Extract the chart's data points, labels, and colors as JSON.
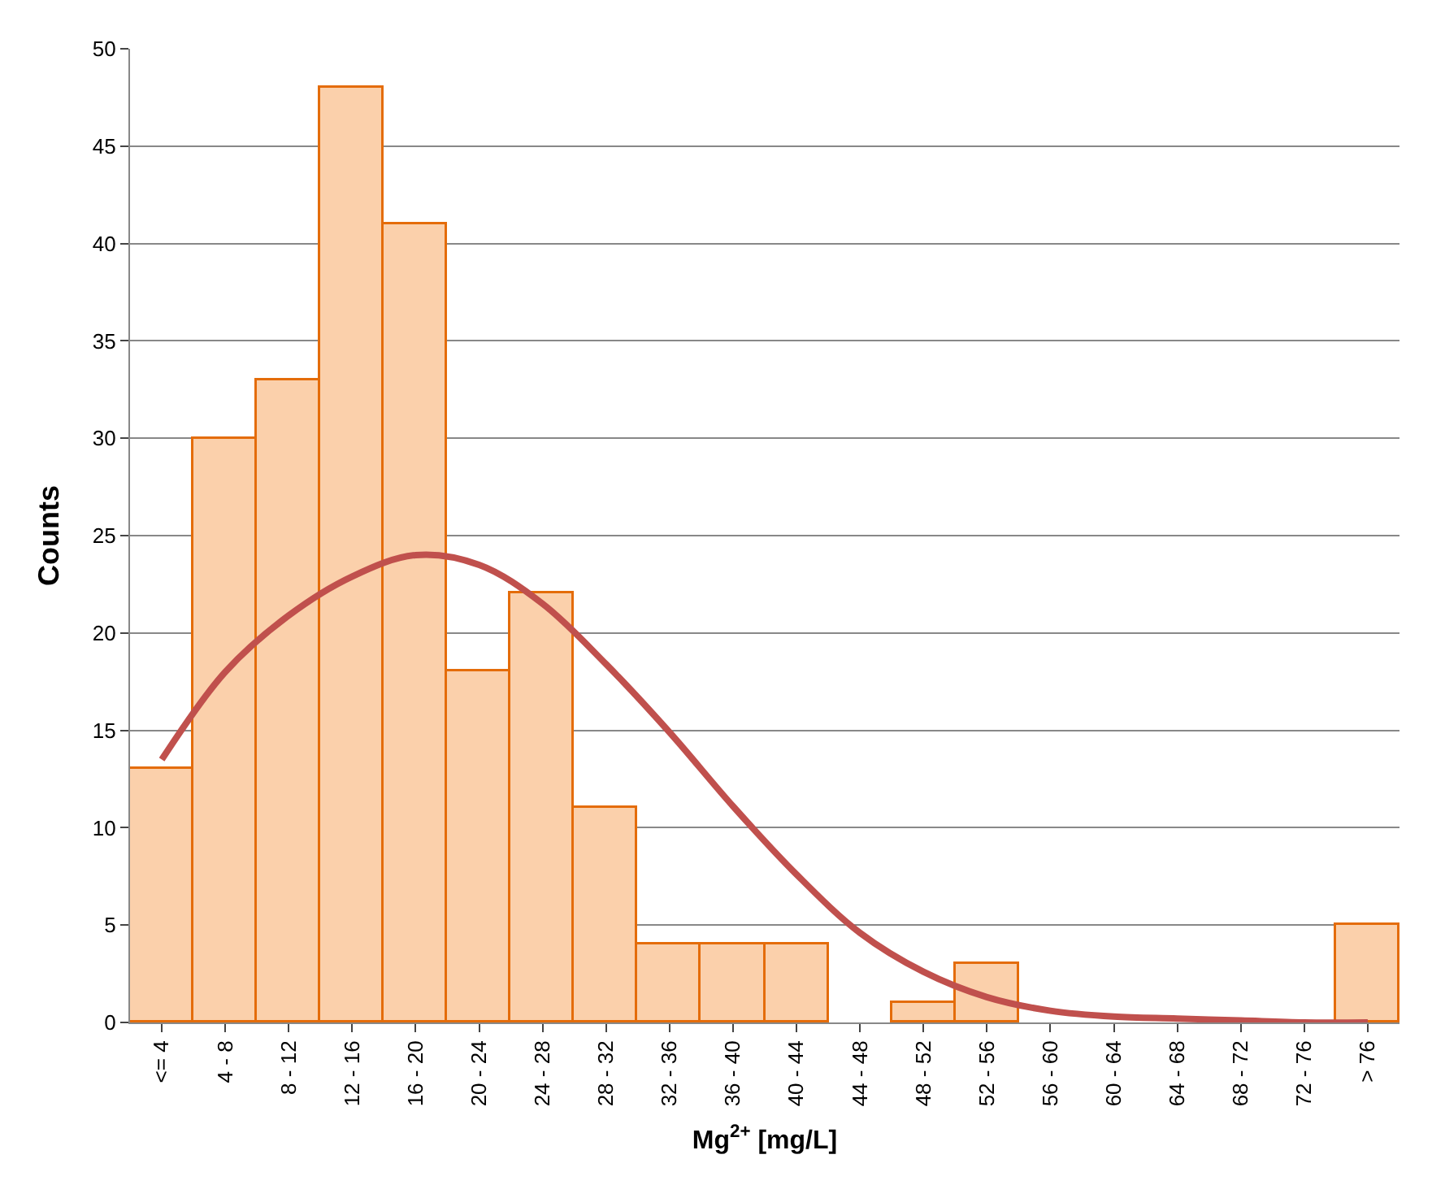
{
  "chart_data": {
    "type": "bar",
    "xlabel": "Mg$^{2+}$ [mg/L]",
    "ylabel": "Counts",
    "categories": [
      "<= 4",
      "4 - 8",
      "8 - 12",
      "12 - 16",
      "16 - 20",
      "20 - 24",
      "24 - 28",
      "28 - 32",
      "32 - 36",
      "36 - 40",
      "40 - 44",
      "44 - 48",
      "48 - 52",
      "52 - 56",
      "56 - 60",
      "60 - 64",
      "64 - 68",
      "68 - 72",
      "72 - 76",
      "> 76"
    ],
    "series": [
      {
        "color": "#fbd0ab",
        "values": [
          13,
          30,
          33,
          48,
          41,
          18,
          22,
          11,
          4,
          4,
          4,
          0,
          1,
          3,
          0,
          0,
          0,
          0,
          0,
          5
        ]
      },
      {
        "type": "line",
        "color": "#c0504d",
        "values": [
          13.5,
          18,
          20.9,
          22.9,
          24,
          23.5,
          21.5,
          18.4,
          14.9,
          11.1,
          7.6,
          4.6,
          2.6,
          1.3,
          0.6,
          0.3,
          0.2,
          0.1,
          0,
          0
        ]
      }
    ],
    "ylim": [
      0,
      50
    ],
    "yticks": [
      0,
      5,
      10,
      15,
      20,
      25,
      30,
      35,
      40,
      45,
      50
    ],
    "grid": "y",
    "marker": "none",
    "line_style": "solid"
  }
}
